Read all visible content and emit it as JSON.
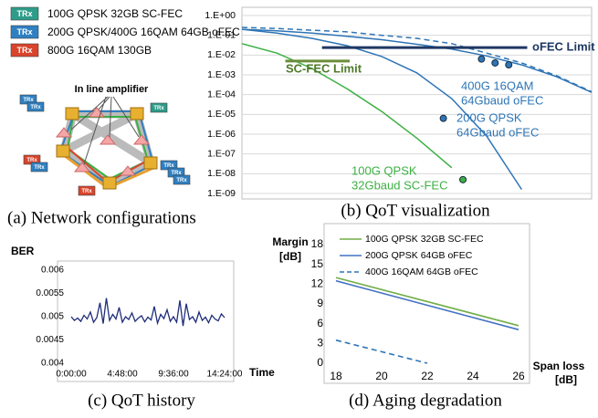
{
  "network": {
    "trx_label": "TRx",
    "legend": [
      {
        "label": "100G QPSK 32GB SC-FEC",
        "color": "#2e9c8a"
      },
      {
        "label": "200G QPSK/400G 16QAM 64GB oFEC",
        "color": "#2f7fc1"
      },
      {
        "label": "800G 16QAM 130GB",
        "color": "#d9442b"
      }
    ],
    "amplifier_label": "In line amplifier",
    "caption": "(a) Network configurations"
  },
  "chart_data": [
    {
      "type": "line",
      "caption": "(b) QoT visualization",
      "log": true,
      "grid": true,
      "xlim": [
        0,
        10
      ],
      "x": [
        0,
        1,
        2,
        3,
        4,
        5,
        6,
        7,
        8,
        9,
        10
      ],
      "ylim": [
        1e-09,
        1
      ],
      "yticks": [
        {
          "value": 1,
          "label": "1.E+00"
        },
        {
          "value": 0.1,
          "label": "1.E-01"
        },
        {
          "value": 0.01,
          "label": "1.E-02"
        },
        {
          "value": 0.001,
          "label": "1.E-03"
        },
        {
          "value": 0.0001,
          "label": "1.E-04"
        },
        {
          "value": 1e-05,
          "label": "1.E-05"
        },
        {
          "value": 1e-06,
          "label": "1.E-06"
        },
        {
          "value": 1e-07,
          "label": "1.E-07"
        },
        {
          "value": 1e-08,
          "label": "1.E-08"
        },
        {
          "value": 1e-09,
          "label": "1.E-09"
        }
      ],
      "series": [
        {
          "color": "#3cb043",
          "values": [
            0.038,
            0.0126,
            0.0021,
            0.0002,
            1.4e-05,
            6.3e-07,
            2e-08,
            null,
            null,
            null,
            null
          ]
        },
        {
          "color": "#2e75b6",
          "values": [
            0.2,
            0.13,
            0.07,
            0.03,
            0.0085,
            0.00126,
            6.3e-05,
            7.9e-07,
            1.6e-09,
            null,
            null
          ]
        },
        {
          "color": "#2e75b6",
          "values": [
            0.2,
            0.17,
            0.13,
            0.09,
            0.06,
            0.035,
            0.02,
            0.009,
            0.0032,
            0.0008,
            0.00013
          ]
        },
        {
          "color": "#2e75b6",
          "style": "dashed",
          "values": [
            0.25,
            0.22,
            0.18,
            0.15,
            0.1,
            0.07,
            0.038,
            0.0126,
            0.004,
            0.0009,
            0.00014
          ]
        },
        {
          "color": "#1f3864",
          "style": "limit",
          "x": [
            2.29,
            8.16
          ],
          "values": [
            0.024,
            0.024
          ]
        },
        {
          "color": "#6b8e3a",
          "style": "limit",
          "x": [
            1.24,
            3.08
          ],
          "values": [
            0.005,
            0.005
          ]
        },
        {
          "color": "#3cb043",
          "style": "markers",
          "x": [
            6.32
          ],
          "values": [
            5e-09
          ]
        },
        {
          "color": "#2e75b6",
          "style": "markers",
          "x": [
            5.76
          ],
          "values": [
            6.3e-06
          ]
        },
        {
          "color": "#2e75b6",
          "style": "markers",
          "x": [
            6.85,
            7.24,
            7.63
          ],
          "values": [
            0.0063,
            0.004,
            0.0032
          ]
        }
      ],
      "annotations": [
        [
          "400G 16QAM",
          "64Gbaud oFEC"
        ],
        [
          "200G QPSK",
          "64Gbaud oFEC"
        ],
        [
          "100G QPSK",
          "32Gbaud SC-FEC"
        ],
        "oFEC Limit",
        "SC-FEC Limit"
      ]
    },
    {
      "type": "line",
      "caption": "(c) QoT history",
      "ylabel": "BER",
      "xlabel": "Time",
      "xlim": [
        0,
        15
      ],
      "ylim": [
        0.004,
        0.006
      ],
      "xticks": [
        {
          "value": 0,
          "label": "0:00:00"
        },
        {
          "value": 4.8,
          "label": "4:48:00"
        },
        {
          "value": 9.6,
          "label": "9:36:00"
        },
        {
          "value": 14.4,
          "label": "14:24:00"
        }
      ],
      "yticks": [
        0.004,
        0.0045,
        0.005,
        0.0055,
        0.006
      ],
      "series": [
        {
          "color": "#1f2d7a",
          "x": [
            0,
            0.3,
            0.6,
            0.9,
            1.2,
            1.5,
            1.8,
            2.1,
            2.4,
            2.7,
            3,
            3.3,
            3.6,
            3.9,
            4.2,
            4.5,
            4.8,
            5.1,
            5.4,
            5.7,
            6,
            6.3,
            6.6,
            6.9,
            7.2,
            7.5,
            7.8,
            8.1,
            8.4,
            8.7,
            9,
            9.3,
            9.6,
            9.9,
            10.2,
            10.5,
            10.8,
            11.1,
            11.4,
            11.7,
            12,
            12.3,
            12.6,
            12.9,
            13.2,
            13.5,
            13.8,
            14.1,
            14.4
          ],
          "values": [
            0.005,
            0.00492,
            0.00497,
            0.0049,
            0.00503,
            0.00495,
            0.0051,
            0.00488,
            0.00498,
            0.0053,
            0.00485,
            0.0054,
            0.00492,
            0.00505,
            0.00495,
            0.0052,
            0.00488,
            0.005,
            0.00494,
            0.00508,
            0.0049,
            0.00497,
            0.00502,
            0.00489,
            0.00499,
            0.00493,
            0.00522,
            0.00486,
            0.00505,
            0.00496,
            0.00515,
            0.0049,
            0.005,
            0.00488,
            0.00535,
            0.0048,
            0.00528,
            0.00494,
            0.005,
            0.00488,
            0.0051,
            0.00492,
            0.00499,
            0.00487,
            0.00503,
            0.00495,
            0.00491,
            0.00506,
            0.00498
          ]
        }
      ]
    },
    {
      "type": "line",
      "caption": "(d) Aging degradation",
      "ylabel": [
        "Margin",
        "[dB]"
      ],
      "xlabel": [
        "Span loss",
        "[dB]"
      ],
      "xlim": [
        18,
        26
      ],
      "ylim": [
        0,
        18
      ],
      "xticks": [
        18,
        20,
        22,
        24,
        26
      ],
      "yticks": [
        0,
        3,
        6,
        9,
        12,
        15,
        18
      ],
      "legend": "top-left",
      "series": [
        {
          "name": "100G QPSK 32GB SC-FEC",
          "color": "#70ad47",
          "x": [
            18,
            26
          ],
          "values": [
            13,
            5.7
          ]
        },
        {
          "name": "200G QPSK 64GB oFEC",
          "color": "#4472c4",
          "x": [
            18,
            26
          ],
          "values": [
            12.5,
            5.1
          ]
        },
        {
          "name": "400G 16QAM 64GB oFEC",
          "color": "#2e75b6",
          "style": "dashed",
          "x": [
            18,
            22
          ],
          "values": [
            3.5,
            0
          ]
        }
      ]
    }
  ]
}
